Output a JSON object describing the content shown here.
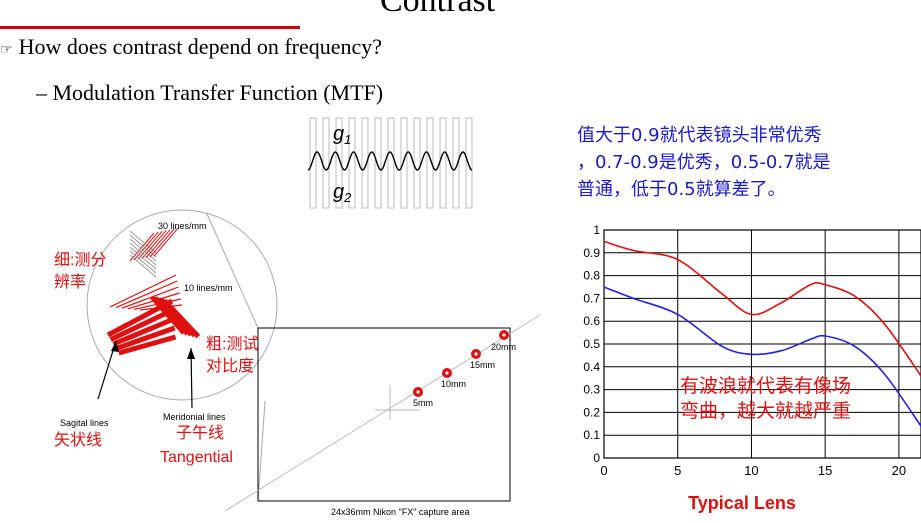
{
  "slide": {
    "title": "Contrast",
    "bullet_1": "How does contrast depend on frequency?",
    "bullet_2": "– Modulation Transfer Function (MTF)"
  },
  "wave_figure": {
    "label_g1": "g",
    "sub_g1": "1",
    "label_g2": "g",
    "sub_g2": "2"
  },
  "lens_diagram": {
    "fine_note": "细:测分\n辨率",
    "fine_note_lines": [
      "细:测分",
      "辨率"
    ],
    "coarse_note_lines": [
      "粗:测试",
      "对比度"
    ],
    "label_30": "30 lines/mm",
    "label_10": "10 lines/mm",
    "sagittal_en": "Sagital lines",
    "sagittal_cn": "矢状线",
    "meridional_en": "Meridonial lines",
    "meridional_cn": "子午线",
    "tangential": "Tangential",
    "mm_labels": [
      "5mm",
      "10mm",
      "15mm",
      "20mm"
    ],
    "capture_area": "24x36mm Nikon \"FX\" capture area"
  },
  "note_lines": [
    "值大于0.9就代表镜头非常优秀",
    "，0.7-0.9是优秀，0.5-0.7就是",
    "普通，低于0.5就算差了。"
  ],
  "chart_data": {
    "type": "line",
    "title": "Typical Lens",
    "xlabel": "",
    "ylabel": "",
    "x_ticks": [
      0,
      5,
      10,
      15,
      20
    ],
    "y_ticks": [
      0,
      0.1,
      0.2,
      0.3,
      0.4,
      0.5,
      0.6,
      0.7,
      0.8,
      0.9,
      1
    ],
    "y_tick_labels": [
      "0",
      "0.1",
      "0.2",
      "0.3",
      "0.4",
      "0.5",
      "0.6",
      "0.7",
      "0.8",
      "0.9",
      "1"
    ],
    "xlim": [
      0,
      21.5
    ],
    "ylim": [
      0,
      1
    ],
    "grid": true,
    "annotation_lines": [
      "有波浪就代表有像场",
      "弯曲，越大就越严重"
    ],
    "series": [
      {
        "color": "#e01010",
        "x": [
          0,
          2,
          5,
          8,
          10,
          12,
          14,
          15,
          17,
          19,
          21.5
        ],
        "y": [
          0.95,
          0.91,
          0.87,
          0.72,
          0.63,
          0.68,
          0.76,
          0.76,
          0.71,
          0.59,
          0.36
        ]
      },
      {
        "color": "#2222dd",
        "x": [
          0,
          2,
          5,
          8,
          10,
          12,
          14,
          15,
          17,
          19,
          21.5
        ],
        "y": [
          0.75,
          0.7,
          0.63,
          0.49,
          0.455,
          0.47,
          0.52,
          0.535,
          0.49,
          0.37,
          0.14
        ]
      }
    ]
  },
  "colors": {
    "accent_red": "#e01010",
    "note_blue": "#1a1acc",
    "title_rule": "#d00000"
  }
}
